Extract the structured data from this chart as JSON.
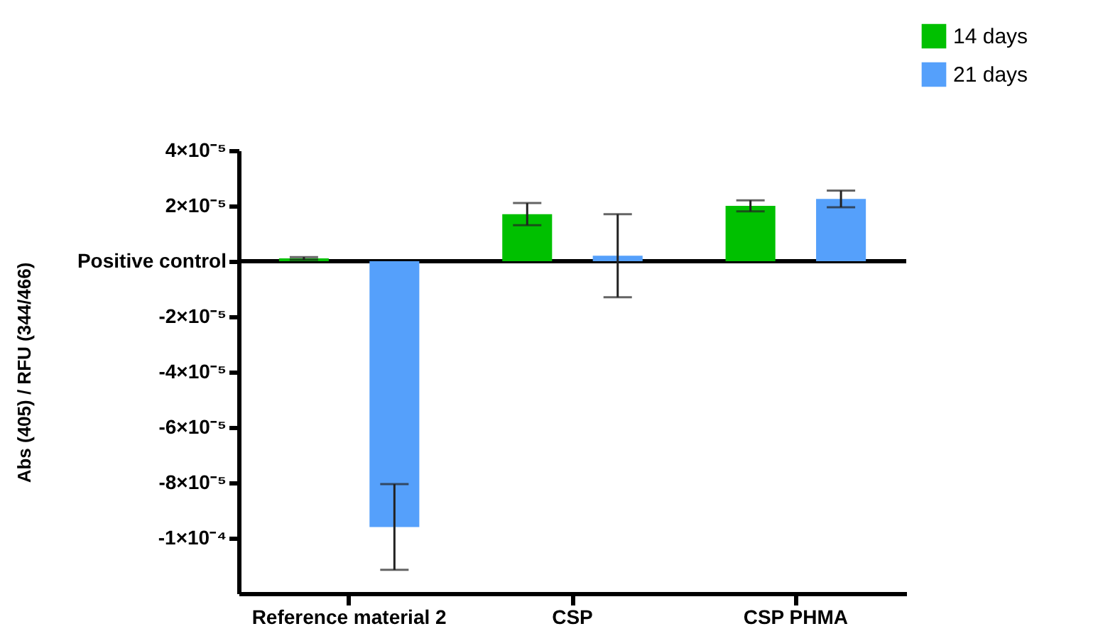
{
  "chart_data": {
    "type": "bar",
    "ylabel": "Abs (405) / RFU (344/466)",
    "categories": [
      "Reference material 2",
      "CSP",
      "CSP PHMA"
    ],
    "series": [
      {
        "name": "14 days",
        "color": "#00c000",
        "values": [
          1e-06,
          1.7e-05,
          2e-05
        ],
        "errors": [
          5e-07,
          4e-06,
          2e-06
        ]
      },
      {
        "name": "21 days",
        "color": "#55a0fb",
        "values": [
          -9.6e-05,
          2e-06,
          2.25e-05
        ],
        "errors": [
          1.55e-05,
          1.5e-05,
          3e-06
        ]
      }
    ],
    "ylim": [
      -0.00012,
      4e-05
    ],
    "yticks": [
      {
        "value": 4e-05,
        "label": "4×10⁻⁵"
      },
      {
        "value": 2e-05,
        "label": "2×10⁻⁵"
      },
      {
        "value": 0,
        "label": "Positive control"
      },
      {
        "value": -2e-05,
        "label": "-2×10⁻⁵"
      },
      {
        "value": -4e-05,
        "label": "-4×10⁻⁵"
      },
      {
        "value": -6e-05,
        "label": "-6×10⁻⁵"
      },
      {
        "value": -8e-05,
        "label": "-8×10⁻⁵"
      },
      {
        "value": -0.0001,
        "label": "-1×10⁻⁴"
      }
    ],
    "ref_lines": [
      {
        "axis": "y",
        "value": 0
      }
    ],
    "grid": false,
    "legend": "top right"
  }
}
